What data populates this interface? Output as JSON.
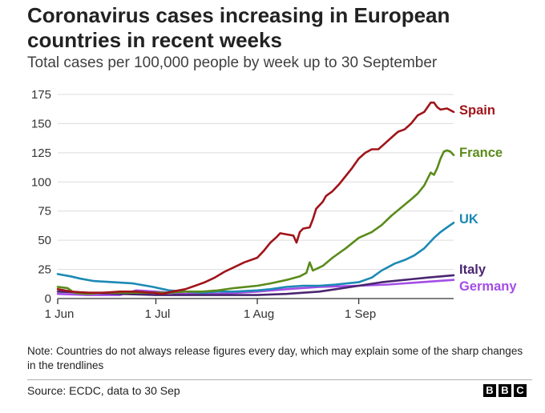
{
  "header": {
    "title": "Coronavirus cases increasing in European countries in recent weeks",
    "subtitle": "Total cases per 100,000 people by week up to 30 September"
  },
  "footer": {
    "note": "Note: Countries do not always release figures every day, which may explain some of the sharp changes in the trendlines",
    "source": "Source: ECDC, data to 30 Sep",
    "logo_letters": [
      "B",
      "B",
      "C"
    ]
  },
  "chart_data": {
    "type": "line",
    "title": "Coronavirus cases increasing in European countries in recent weeks",
    "subtitle": "Total cases per 100,000 people by week up to 30 September",
    "xlabel": "",
    "ylabel": "",
    "xlim": [
      "2020-06-01",
      "2020-09-30"
    ],
    "ylim": [
      0,
      175
    ],
    "y_ticks": [
      0,
      25,
      50,
      75,
      100,
      125,
      150,
      175
    ],
    "x_ticks": [
      {
        "date": "2020-06-01",
        "label": "1 Jun"
      },
      {
        "date": "2020-07-01",
        "label": "1 Jul"
      },
      {
        "date": "2020-08-01",
        "label": "1 Aug"
      },
      {
        "date": "2020-09-01",
        "label": "1 Sep"
      }
    ],
    "grid": {
      "horizontal": true,
      "vertical": false
    },
    "legend": "direct labels at line ends",
    "series": [
      {
        "name": "Spain",
        "color": "#a0141a",
        "points": [
          [
            "2020-06-01",
            8
          ],
          [
            "2020-06-05",
            6
          ],
          [
            "2020-06-10",
            5
          ],
          [
            "2020-06-15",
            5
          ],
          [
            "2020-06-20",
            6
          ],
          [
            "2020-06-25",
            6
          ],
          [
            "2020-06-30",
            5
          ],
          [
            "2020-07-03",
            4
          ],
          [
            "2020-07-06",
            6
          ],
          [
            "2020-07-10",
            8
          ],
          [
            "2020-07-13",
            11
          ],
          [
            "2020-07-16",
            14
          ],
          [
            "2020-07-19",
            18
          ],
          [
            "2020-07-22",
            23
          ],
          [
            "2020-07-25",
            27
          ],
          [
            "2020-07-28",
            31
          ],
          [
            "2020-08-01",
            35
          ],
          [
            "2020-08-03",
            41
          ],
          [
            "2020-08-05",
            48
          ],
          [
            "2020-08-07",
            53
          ],
          [
            "2020-08-08",
            56
          ],
          [
            "2020-08-10",
            55
          ],
          [
            "2020-08-12",
            54
          ],
          [
            "2020-08-13",
            48
          ],
          [
            "2020-08-14",
            57
          ],
          [
            "2020-08-15",
            60
          ],
          [
            "2020-08-17",
            61
          ],
          [
            "2020-08-18",
            68
          ],
          [
            "2020-08-19",
            77
          ],
          [
            "2020-08-21",
            83
          ],
          [
            "2020-08-22",
            88
          ],
          [
            "2020-08-24",
            92
          ],
          [
            "2020-08-26",
            98
          ],
          [
            "2020-08-28",
            105
          ],
          [
            "2020-08-30",
            112
          ],
          [
            "2020-09-01",
            120
          ],
          [
            "2020-09-03",
            125
          ],
          [
            "2020-09-05",
            128
          ],
          [
            "2020-09-07",
            128
          ],
          [
            "2020-09-09",
            133
          ],
          [
            "2020-09-11",
            138
          ],
          [
            "2020-09-13",
            143
          ],
          [
            "2020-09-15",
            145
          ],
          [
            "2020-09-17",
            150
          ],
          [
            "2020-09-19",
            157
          ],
          [
            "2020-09-21",
            160
          ],
          [
            "2020-09-23",
            168
          ],
          [
            "2020-09-24",
            168
          ],
          [
            "2020-09-25",
            164
          ],
          [
            "2020-09-26",
            162
          ],
          [
            "2020-09-28",
            163
          ],
          [
            "2020-09-30",
            160
          ]
        ]
      },
      {
        "name": "France",
        "color": "#5a8b1a",
        "points": [
          [
            "2020-06-01",
            10
          ],
          [
            "2020-06-04",
            9
          ],
          [
            "2020-06-06",
            5
          ],
          [
            "2020-06-10",
            4
          ],
          [
            "2020-06-15",
            5
          ],
          [
            "2020-06-20",
            5
          ],
          [
            "2020-06-25",
            5
          ],
          [
            "2020-06-30",
            5
          ],
          [
            "2020-07-05",
            5
          ],
          [
            "2020-07-10",
            6
          ],
          [
            "2020-07-15",
            6
          ],
          [
            "2020-07-20",
            7
          ],
          [
            "2020-07-25",
            9
          ],
          [
            "2020-08-01",
            11
          ],
          [
            "2020-08-05",
            13
          ],
          [
            "2020-08-10",
            16
          ],
          [
            "2020-08-14",
            19
          ],
          [
            "2020-08-16",
            22
          ],
          [
            "2020-08-17",
            31
          ],
          [
            "2020-08-18",
            24
          ],
          [
            "2020-08-21",
            28
          ],
          [
            "2020-08-24",
            35
          ],
          [
            "2020-08-28",
            43
          ],
          [
            "2020-09-01",
            52
          ],
          [
            "2020-09-05",
            57
          ],
          [
            "2020-09-08",
            63
          ],
          [
            "2020-09-11",
            71
          ],
          [
            "2020-09-14",
            78
          ],
          [
            "2020-09-17",
            85
          ],
          [
            "2020-09-19",
            90
          ],
          [
            "2020-09-21",
            97
          ],
          [
            "2020-09-23",
            108
          ],
          [
            "2020-09-24",
            106
          ],
          [
            "2020-09-25",
            112
          ],
          [
            "2020-09-26",
            120
          ],
          [
            "2020-09-27",
            126
          ],
          [
            "2020-09-28",
            127
          ],
          [
            "2020-09-29",
            126
          ],
          [
            "2020-09-30",
            123
          ]
        ]
      },
      {
        "name": "UK",
        "color": "#1c89b5",
        "points": [
          [
            "2020-06-01",
            21
          ],
          [
            "2020-06-05",
            19
          ],
          [
            "2020-06-08",
            17
          ],
          [
            "2020-06-12",
            15
          ],
          [
            "2020-06-18",
            14
          ],
          [
            "2020-06-24",
            13
          ],
          [
            "2020-06-30",
            10
          ],
          [
            "2020-07-05",
            7
          ],
          [
            "2020-07-10",
            6
          ],
          [
            "2020-07-15",
            5
          ],
          [
            "2020-07-20",
            6
          ],
          [
            "2020-07-25",
            6
          ],
          [
            "2020-08-01",
            7
          ],
          [
            "2020-08-05",
            8
          ],
          [
            "2020-08-10",
            10
          ],
          [
            "2020-08-15",
            11
          ],
          [
            "2020-08-20",
            11
          ],
          [
            "2020-08-25",
            12
          ],
          [
            "2020-09-01",
            14
          ],
          [
            "2020-09-05",
            18
          ],
          [
            "2020-09-08",
            24
          ],
          [
            "2020-09-12",
            30
          ],
          [
            "2020-09-15",
            33
          ],
          [
            "2020-09-18",
            37
          ],
          [
            "2020-09-21",
            43
          ],
          [
            "2020-09-24",
            52
          ],
          [
            "2020-09-26",
            57
          ],
          [
            "2020-09-28",
            61
          ],
          [
            "2020-09-30",
            65
          ]
        ]
      },
      {
        "name": "Italy",
        "color": "#4a2570",
        "points": [
          [
            "2020-06-01",
            6
          ],
          [
            "2020-06-10",
            5
          ],
          [
            "2020-06-20",
            4
          ],
          [
            "2020-07-01",
            3
          ],
          [
            "2020-07-10",
            3
          ],
          [
            "2020-07-20",
            3
          ],
          [
            "2020-08-01",
            3
          ],
          [
            "2020-08-10",
            4
          ],
          [
            "2020-08-20",
            6
          ],
          [
            "2020-08-25",
            8
          ],
          [
            "2020-09-01",
            11
          ],
          [
            "2020-09-08",
            14
          ],
          [
            "2020-09-15",
            16
          ],
          [
            "2020-09-22",
            18
          ],
          [
            "2020-09-30",
            20
          ]
        ]
      },
      {
        "name": "Germany",
        "color": "#a34de6",
        "points": [
          [
            "2020-06-01",
            4
          ],
          [
            "2020-06-10",
            3
          ],
          [
            "2020-06-20",
            3
          ],
          [
            "2020-06-25",
            7
          ],
          [
            "2020-07-01",
            6
          ],
          [
            "2020-07-10",
            4
          ],
          [
            "2020-07-20",
            4
          ],
          [
            "2020-08-01",
            6
          ],
          [
            "2020-08-10",
            8
          ],
          [
            "2020-08-20",
            10
          ],
          [
            "2020-09-01",
            11
          ],
          [
            "2020-09-10",
            12
          ],
          [
            "2020-09-20",
            14
          ],
          [
            "2020-09-30",
            16
          ]
        ]
      }
    ]
  }
}
